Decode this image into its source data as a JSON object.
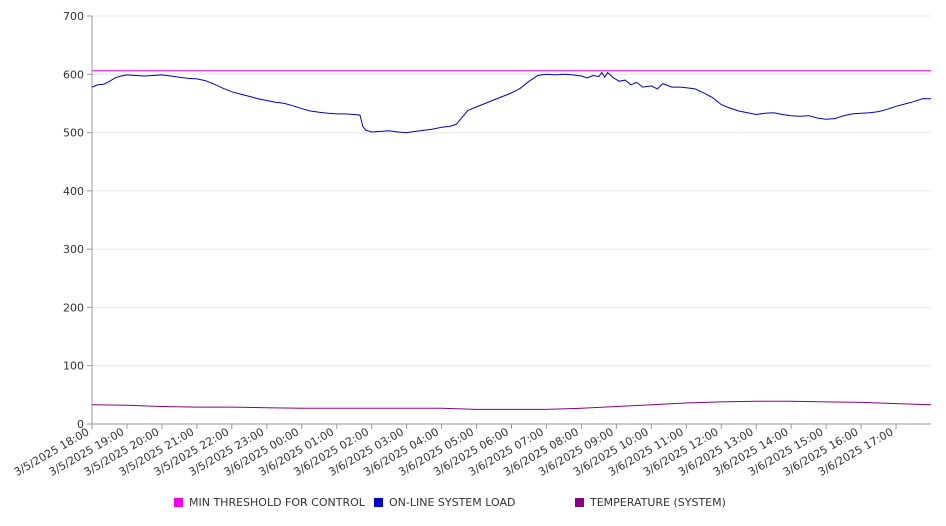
{
  "chart_data": {
    "type": "line",
    "title": "",
    "xlabel": "",
    "ylabel": "",
    "ylim": [
      0,
      700
    ],
    "yticks": [
      0,
      100,
      200,
      300,
      400,
      500,
      600,
      700
    ],
    "x_tick_labels": [
      "3/5/2025 18:00",
      "3/5/2025 19:00",
      "3/5/2025 20:00",
      "3/5/2025 21:00",
      "3/5/2025 22:00",
      "3/5/2025 23:00",
      "3/6/2025 00:00",
      "3/6/2025 01:00",
      "3/6/2025 02:00",
      "3/6/2025 03:00",
      "3/6/2025 04:00",
      "3/6/2025 05:00",
      "3/6/2025 06:00",
      "3/6/2025 07:00",
      "3/6/2025 08:00",
      "3/6/2025 09:00",
      "3/6/2025 10:00",
      "3/6/2025 11:00",
      "3/6/2025 12:00",
      "3/6/2025 13:00",
      "3/6/2025 14:00",
      "3/6/2025 15:00",
      "3/6/2025 16:00",
      "3/6/2025 17:00"
    ],
    "x_range": [
      "3/5/2025 18:00",
      "3/6/2025 18:00"
    ],
    "grid": "horizontal",
    "legend_position": "bottom",
    "series": [
      {
        "name": "MIN THRESHOLD FOR CONTROL",
        "color": "#ee00ee",
        "points": [
          [
            "3/5/2025 18:00",
            606
          ],
          [
            "3/6/2025 18:00",
            606
          ]
        ]
      },
      {
        "name": "ON-LINE SYSTEM LOAD",
        "color": "#0000cc",
        "points": [
          [
            "3/5/2025 18:00",
            578
          ],
          [
            "3/5/2025 18:10",
            582
          ],
          [
            "3/5/2025 18:20",
            583
          ],
          [
            "3/5/2025 18:30",
            588
          ],
          [
            "3/5/2025 18:40",
            594
          ],
          [
            "3/5/2025 18:50",
            597
          ],
          [
            "3/5/2025 19:00",
            599
          ],
          [
            "3/5/2025 19:15",
            598
          ],
          [
            "3/5/2025 19:30",
            597
          ],
          [
            "3/5/2025 19:45",
            598
          ],
          [
            "3/5/2025 20:00",
            599
          ],
          [
            "3/5/2025 20:15",
            597
          ],
          [
            "3/5/2025 20:30",
            595
          ],
          [
            "3/5/2025 20:45",
            593
          ],
          [
            "3/5/2025 21:00",
            592
          ],
          [
            "3/5/2025 21:15",
            589
          ],
          [
            "3/5/2025 21:30",
            583
          ],
          [
            "3/5/2025 21:45",
            576
          ],
          [
            "3/5/2025 22:00",
            570
          ],
          [
            "3/5/2025 22:15",
            566
          ],
          [
            "3/5/2025 22:30",
            562
          ],
          [
            "3/5/2025 22:45",
            558
          ],
          [
            "3/5/2025 23:00",
            555
          ],
          [
            "3/5/2025 23:15",
            552
          ],
          [
            "3/5/2025 23:30",
            550
          ],
          [
            "3/5/2025 23:45",
            546
          ],
          [
            "3/6/2025 00:00",
            541
          ],
          [
            "3/6/2025 00:15",
            537
          ],
          [
            "3/6/2025 00:30",
            535
          ],
          [
            "3/6/2025 00:45",
            533
          ],
          [
            "3/6/2025 01:00",
            532
          ],
          [
            "3/6/2025 01:15",
            532
          ],
          [
            "3/6/2025 01:30",
            531
          ],
          [
            "3/6/2025 01:40",
            530
          ],
          [
            "3/6/2025 01:45",
            510
          ],
          [
            "3/6/2025 01:50",
            504
          ],
          [
            "3/6/2025 02:00",
            501
          ],
          [
            "3/6/2025 02:15",
            502
          ],
          [
            "3/6/2025 02:30",
            503
          ],
          [
            "3/6/2025 02:45",
            501
          ],
          [
            "3/6/2025 03:00",
            500
          ],
          [
            "3/6/2025 03:15",
            502
          ],
          [
            "3/6/2025 03:30",
            504
          ],
          [
            "3/6/2025 03:45",
            506
          ],
          [
            "3/6/2025 04:00",
            509
          ],
          [
            "3/6/2025 04:15",
            511
          ],
          [
            "3/6/2025 04:25",
            514
          ],
          [
            "3/6/2025 04:35",
            526
          ],
          [
            "3/6/2025 04:45",
            538
          ],
          [
            "3/6/2025 05:00",
            544
          ],
          [
            "3/6/2025 05:15",
            550
          ],
          [
            "3/6/2025 05:30",
            556
          ],
          [
            "3/6/2025 05:45",
            562
          ],
          [
            "3/6/2025 06:00",
            568
          ],
          [
            "3/6/2025 06:15",
            576
          ],
          [
            "3/6/2025 06:30",
            588
          ],
          [
            "3/6/2025 06:45",
            598
          ],
          [
            "3/6/2025 07:00",
            600
          ],
          [
            "3/6/2025 07:15",
            599
          ],
          [
            "3/6/2025 07:30",
            600
          ],
          [
            "3/6/2025 07:45",
            599
          ],
          [
            "3/6/2025 08:00",
            597
          ],
          [
            "3/6/2025 08:10",
            594
          ],
          [
            "3/6/2025 08:20",
            598
          ],
          [
            "3/6/2025 08:30",
            596
          ],
          [
            "3/6/2025 08:35",
            603
          ],
          [
            "3/6/2025 08:40",
            595
          ],
          [
            "3/6/2025 08:45",
            603
          ],
          [
            "3/6/2025 08:55",
            594
          ],
          [
            "3/6/2025 09:05",
            588
          ],
          [
            "3/6/2025 09:15",
            590
          ],
          [
            "3/6/2025 09:25",
            582
          ],
          [
            "3/6/2025 09:35",
            586
          ],
          [
            "3/6/2025 09:45",
            578
          ],
          [
            "3/6/2025 10:00",
            580
          ],
          [
            "3/6/2025 10:10",
            575
          ],
          [
            "3/6/2025 10:20",
            584
          ],
          [
            "3/6/2025 10:35",
            578
          ],
          [
            "3/6/2025 10:50",
            578
          ],
          [
            "3/6/2025 11:00",
            577
          ],
          [
            "3/6/2025 11:15",
            575
          ],
          [
            "3/6/2025 11:30",
            568
          ],
          [
            "3/6/2025 11:45",
            560
          ],
          [
            "3/6/2025 12:00",
            548
          ],
          [
            "3/6/2025 12:15",
            542
          ],
          [
            "3/6/2025 12:30",
            537
          ],
          [
            "3/6/2025 12:45",
            534
          ],
          [
            "3/6/2025 13:00",
            531
          ],
          [
            "3/6/2025 13:15",
            533
          ],
          [
            "3/6/2025 13:30",
            534
          ],
          [
            "3/6/2025 13:45",
            531
          ],
          [
            "3/6/2025 14:00",
            529
          ],
          [
            "3/6/2025 14:15",
            528
          ],
          [
            "3/6/2025 14:30",
            529
          ],
          [
            "3/6/2025 14:45",
            525
          ],
          [
            "3/6/2025 15:00",
            523
          ],
          [
            "3/6/2025 15:15",
            524
          ],
          [
            "3/6/2025 15:30",
            529
          ],
          [
            "3/6/2025 15:45",
            532
          ],
          [
            "3/6/2025 16:00",
            533
          ],
          [
            "3/6/2025 16:15",
            534
          ],
          [
            "3/6/2025 16:30",
            536
          ],
          [
            "3/6/2025 16:45",
            540
          ],
          [
            "3/6/2025 17:00",
            545
          ],
          [
            "3/6/2025 17:15",
            549
          ],
          [
            "3/6/2025 17:30",
            553
          ],
          [
            "3/6/2025 17:45",
            558
          ],
          [
            "3/6/2025 18:00",
            558
          ]
        ]
      },
      {
        "name": "TEMPERATURE (SYSTEM)",
        "color": "#880088",
        "points": [
          [
            "3/5/2025 18:00",
            33
          ],
          [
            "3/5/2025 19:00",
            32
          ],
          [
            "3/5/2025 20:00",
            30
          ],
          [
            "3/5/2025 21:00",
            29
          ],
          [
            "3/5/2025 22:00",
            29
          ],
          [
            "3/5/2025 23:00",
            28
          ],
          [
            "3/6/2025 00:00",
            27
          ],
          [
            "3/6/2025 01:00",
            27
          ],
          [
            "3/6/2025 02:00",
            27
          ],
          [
            "3/6/2025 03:00",
            27
          ],
          [
            "3/6/2025 04:00",
            27
          ],
          [
            "3/6/2025 05:00",
            25
          ],
          [
            "3/6/2025 06:00",
            25
          ],
          [
            "3/6/2025 07:00",
            25
          ],
          [
            "3/6/2025 08:00",
            27
          ],
          [
            "3/6/2025 09:00",
            30
          ],
          [
            "3/6/2025 10:00",
            33
          ],
          [
            "3/6/2025 11:00",
            36
          ],
          [
            "3/6/2025 12:00",
            38
          ],
          [
            "3/6/2025 13:00",
            39
          ],
          [
            "3/6/2025 14:00",
            39
          ],
          [
            "3/6/2025 15:00",
            38
          ],
          [
            "3/6/2025 16:00",
            37
          ],
          [
            "3/6/2025 17:00",
            35
          ],
          [
            "3/6/2025 18:00",
            33
          ]
        ]
      }
    ]
  }
}
